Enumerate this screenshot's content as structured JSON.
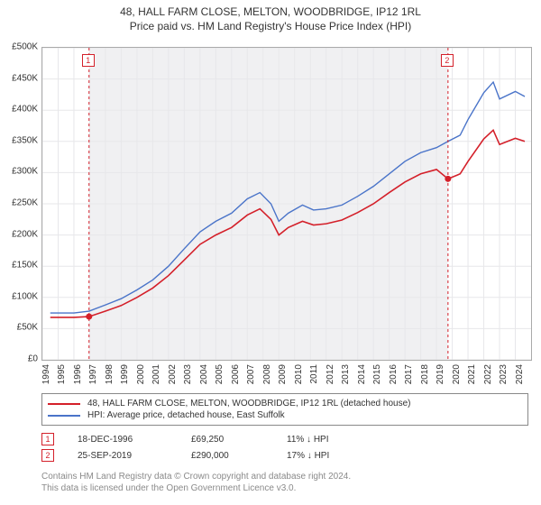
{
  "titles": {
    "line1": "48, HALL FARM CLOSE, MELTON, WOODBRIDGE, IP12 1RL",
    "line2": "Price paid vs. HM Land Registry's House Price Index (HPI)"
  },
  "chart": {
    "type": "line",
    "background_color": "#ffffff",
    "grid_color": "#e7e7ea",
    "axis_color": "#aaaaaa",
    "y_min": 0,
    "y_max": 500000,
    "y_step": 50000,
    "y_prefix": "£",
    "y_suffix": "K",
    "y_divisor": 1000,
    "x_min": 1994,
    "x_max": 2025,
    "x_ticks": [
      1994,
      1995,
      1996,
      1997,
      1998,
      1999,
      2000,
      2001,
      2002,
      2003,
      2004,
      2005,
      2006,
      2007,
      2008,
      2009,
      2010,
      2011,
      2012,
      2013,
      2014,
      2015,
      2016,
      2017,
      2018,
      2019,
      2020,
      2021,
      2022,
      2023,
      2024
    ],
    "fill_start_year": 1996.96,
    "fill_end_year": 2019.73,
    "fill_color": "#f0f0f2",
    "series": [
      {
        "name": "hpi",
        "color": "#4a74c9",
        "width": 1.4,
        "data": [
          [
            1994.5,
            75000
          ],
          [
            1996.0,
            75000
          ],
          [
            1996.96,
            78000
          ],
          [
            1998,
            88000
          ],
          [
            1999,
            98000
          ],
          [
            2000,
            112000
          ],
          [
            2001,
            128000
          ],
          [
            2002,
            150000
          ],
          [
            2003,
            178000
          ],
          [
            2004,
            205000
          ],
          [
            2005,
            222000
          ],
          [
            2006,
            235000
          ],
          [
            2007,
            258000
          ],
          [
            2007.8,
            268000
          ],
          [
            2008.5,
            250000
          ],
          [
            2009,
            222000
          ],
          [
            2009.6,
            235000
          ],
          [
            2010.5,
            248000
          ],
          [
            2011.2,
            240000
          ],
          [
            2012,
            242000
          ],
          [
            2013,
            248000
          ],
          [
            2014,
            262000
          ],
          [
            2015,
            278000
          ],
          [
            2016,
            298000
          ],
          [
            2017,
            318000
          ],
          [
            2018,
            332000
          ],
          [
            2019,
            340000
          ],
          [
            2019.73,
            350000
          ],
          [
            2020.5,
            360000
          ],
          [
            2021,
            385000
          ],
          [
            2022,
            428000
          ],
          [
            2022.6,
            445000
          ],
          [
            2023,
            418000
          ],
          [
            2024,
            430000
          ],
          [
            2024.6,
            422000
          ]
        ]
      },
      {
        "name": "property",
        "color": "#d4202a",
        "width": 1.6,
        "data": [
          [
            1994.5,
            68000
          ],
          [
            1996.0,
            68000
          ],
          [
            1996.96,
            69250
          ],
          [
            1998,
            78000
          ],
          [
            1999,
            87000
          ],
          [
            2000,
            100000
          ],
          [
            2001,
            115000
          ],
          [
            2002,
            135000
          ],
          [
            2003,
            160000
          ],
          [
            2004,
            185000
          ],
          [
            2005,
            200000
          ],
          [
            2006,
            212000
          ],
          [
            2007,
            232000
          ],
          [
            2007.8,
            242000
          ],
          [
            2008.5,
            225000
          ],
          [
            2009,
            200000
          ],
          [
            2009.6,
            212000
          ],
          [
            2010.5,
            222000
          ],
          [
            2011.2,
            216000
          ],
          [
            2012,
            218000
          ],
          [
            2013,
            224000
          ],
          [
            2014,
            236000
          ],
          [
            2015,
            250000
          ],
          [
            2016,
            268000
          ],
          [
            2017,
            285000
          ],
          [
            2018,
            298000
          ],
          [
            2019,
            305000
          ],
          [
            2019.73,
            290000
          ],
          [
            2020.5,
            298000
          ],
          [
            2021,
            318000
          ],
          [
            2022,
            354000
          ],
          [
            2022.6,
            368000
          ],
          [
            2023,
            345000
          ],
          [
            2024,
            355000
          ],
          [
            2024.6,
            350000
          ]
        ]
      }
    ],
    "markers": [
      {
        "n": "1",
        "year": 1996.96,
        "price": 69250,
        "color": "#d4202a",
        "y_top": 60
      },
      {
        "n": "2",
        "year": 2019.73,
        "price": 290000,
        "color": "#d4202a",
        "y_top": 60
      }
    ]
  },
  "legend": [
    {
      "color": "#d4202a",
      "label": "48, HALL FARM CLOSE, MELTON, WOODBRIDGE, IP12 1RL (detached house)"
    },
    {
      "color": "#4a74c9",
      "label": "HPI: Average price, detached house, East Suffolk"
    }
  ],
  "sales": [
    {
      "n": "1",
      "color": "#d4202a",
      "date": "18-DEC-1996",
      "price": "£69,250",
      "diff": "11% ↓ HPI"
    },
    {
      "n": "2",
      "color": "#d4202a",
      "date": "25-SEP-2019",
      "price": "£290,000",
      "diff": "17% ↓ HPI"
    }
  ],
  "footer": {
    "line1": "Contains HM Land Registry data © Crown copyright and database right 2024.",
    "line2": "This data is licensed under the Open Government Licence v3.0."
  }
}
